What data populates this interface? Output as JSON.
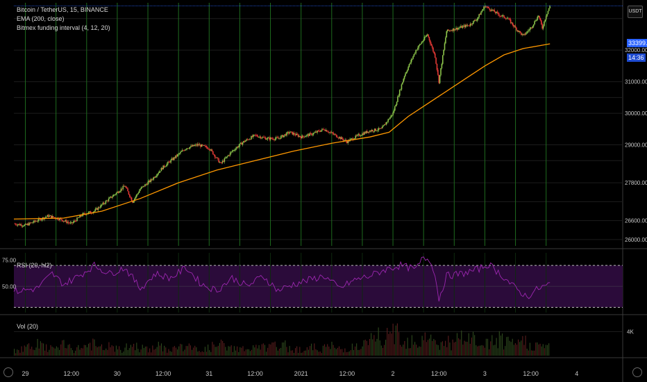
{
  "legend": {
    "title": "Bitcoin / TetherUS, 15, BINANCE",
    "ema": "EMA (200, close)",
    "indicator": "Bitmex funding interval (4, 12, 20)",
    "rsi": "RSI (20, hl2)",
    "vol": "Vol (20)"
  },
  "corner_button": "USDT",
  "price_tag": "33399.01",
  "countdown_tag": "14:36",
  "colors": {
    "background": "#000000",
    "up_candle": "#8bc34a",
    "down_candle": "#e53935",
    "ema": "#ff9800",
    "funding_lines": "#1e6b1e",
    "rsi_line": "#9c27b0",
    "rsi_band": "#2b0b3a",
    "price_line": "#2962ff"
  },
  "chart_data": [
    {
      "type": "line",
      "name": "price",
      "ema_label": "EMA (200, close)",
      "scale_labels": [
        "32000.00",
        "31000.00",
        "30000.00",
        "29000.00",
        "27800.00",
        "26600.00",
        "26000.00"
      ],
      "scale_values": [
        32000,
        31000,
        30000,
        29000,
        27800,
        26600,
        26000
      ],
      "ylim": [
        25800,
        33500
      ],
      "x_ticks": [
        "29",
        "12:00",
        "30",
        "12:00",
        "31",
        "12:00",
        "2021",
        "12:00",
        "2",
        "12:00",
        "3",
        "12:00",
        "4"
      ],
      "x_tick_times": [
        0,
        12,
        24,
        36,
        48,
        60,
        72,
        84,
        96,
        108,
        120,
        132,
        144
      ],
      "x_range": [
        -3,
        156
      ],
      "last_time": 137,
      "close_points": [
        [
          -3,
          26500
        ],
        [
          0,
          26450
        ],
        [
          3,
          26600
        ],
        [
          6,
          26750
        ],
        [
          9,
          26650
        ],
        [
          12,
          26500
        ],
        [
          15,
          26800
        ],
        [
          18,
          26900
        ],
        [
          21,
          27200
        ],
        [
          24,
          27500
        ],
        [
          26,
          27700
        ],
        [
          28,
          27200
        ],
        [
          30,
          27600
        ],
        [
          33,
          27900
        ],
        [
          36,
          28300
        ],
        [
          39,
          28600
        ],
        [
          42,
          28900
        ],
        [
          45,
          29000
        ],
        [
          48,
          28900
        ],
        [
          51,
          28400
        ],
        [
          54,
          28800
        ],
        [
          57,
          29100
        ],
        [
          60,
          29300
        ],
        [
          63,
          29200
        ],
        [
          66,
          29200
        ],
        [
          69,
          29400
        ],
        [
          72,
          29250
        ],
        [
          75,
          29350
        ],
        [
          78,
          29500
        ],
        [
          81,
          29300
        ],
        [
          84,
          29100
        ],
        [
          87,
          29300
        ],
        [
          90,
          29450
        ],
        [
          93,
          29500
        ],
        [
          96,
          30000
        ],
        [
          99,
          31200
        ],
        [
          102,
          32000
        ],
        [
          105,
          32500
        ],
        [
          107,
          31800
        ],
        [
          108,
          31000
        ],
        [
          110,
          32600
        ],
        [
          113,
          32700
        ],
        [
          116,
          32800
        ],
        [
          118,
          33000
        ],
        [
          120,
          33400
        ],
        [
          122,
          33250
        ],
        [
          124,
          33100
        ],
        [
          126,
          33000
        ],
        [
          128,
          32700
        ],
        [
          130,
          32450
        ],
        [
          132,
          32700
        ],
        [
          134,
          33100
        ],
        [
          135,
          32700
        ],
        [
          136,
          33100
        ],
        [
          137,
          33399
        ]
      ],
      "ema_points": [
        [
          -3,
          26650
        ],
        [
          10,
          26680
        ],
        [
          20,
          26900
        ],
        [
          30,
          27300
        ],
        [
          40,
          27800
        ],
        [
          50,
          28200
        ],
        [
          60,
          28500
        ],
        [
          70,
          28800
        ],
        [
          80,
          29050
        ],
        [
          90,
          29250
        ],
        [
          95,
          29400
        ],
        [
          100,
          29900
        ],
        [
          105,
          30300
        ],
        [
          110,
          30700
        ],
        [
          115,
          31100
        ],
        [
          120,
          31500
        ],
        [
          125,
          31850
        ],
        [
          130,
          32050
        ],
        [
          137,
          32200
        ]
      ],
      "funding_interval_hours": 8
    },
    {
      "type": "line",
      "name": "RSI (20, hl2)",
      "scale_labels": [
        "75.00",
        "50.00"
      ],
      "scale_values": [
        75,
        50
      ],
      "band": [
        70,
        30
      ],
      "ylim": [
        25,
        82
      ],
      "points": [
        [
          -3,
          45
        ],
        [
          3,
          48
        ],
        [
          7,
          62
        ],
        [
          10,
          52
        ],
        [
          14,
          60
        ],
        [
          18,
          70
        ],
        [
          22,
          62
        ],
        [
          26,
          68
        ],
        [
          30,
          48
        ],
        [
          34,
          62
        ],
        [
          38,
          58
        ],
        [
          42,
          68
        ],
        [
          46,
          52
        ],
        [
          50,
          46
        ],
        [
          54,
          58
        ],
        [
          58,
          50
        ],
        [
          62,
          60
        ],
        [
          66,
          46
        ],
        [
          70,
          52
        ],
        [
          74,
          56
        ],
        [
          78,
          60
        ],
        [
          82,
          48
        ],
        [
          86,
          56
        ],
        [
          90,
          60
        ],
        [
          94,
          66
        ],
        [
          98,
          70
        ],
        [
          102,
          66
        ],
        [
          104,
          78
        ],
        [
          106,
          74
        ],
        [
          107,
          60
        ],
        [
          108,
          38
        ],
        [
          110,
          60
        ],
        [
          114,
          62
        ],
        [
          118,
          66
        ],
        [
          121,
          71
        ],
        [
          124,
          62
        ],
        [
          128,
          48
        ],
        [
          131,
          40
        ],
        [
          134,
          48
        ],
        [
          137,
          52
        ]
      ]
    },
    {
      "type": "bar",
      "name": "Vol (20)",
      "scale_labels": [
        "4K"
      ],
      "scale_values": [
        4000
      ],
      "ylim": [
        0,
        6500
      ],
      "volumes": [
        900,
        1200,
        1400,
        1000,
        1800,
        1300,
        1100,
        1500,
        1700,
        1200,
        1000,
        1400,
        1600,
        1900,
        1300,
        1200,
        1500,
        1100,
        1000,
        1300,
        1700,
        1400,
        1200,
        1100,
        1500,
        1300,
        1000,
        1200,
        1400,
        1600,
        1300,
        1100,
        1000,
        1200,
        1500,
        1800,
        1400,
        1200,
        1300,
        1100,
        1000,
        1200,
        1400,
        1300,
        1500,
        1700,
        1600,
        1200,
        1100,
        1000,
        1200,
        1300,
        1100,
        1400,
        1500,
        1200,
        1000,
        1300,
        1400,
        1200,
        1800,
        2600,
        3300,
        2200,
        2900,
        4200,
        3100,
        2400,
        2800,
        2000,
        3600,
        2500,
        2100,
        1900,
        2300,
        1800,
        2700,
        2000,
        3100,
        2200,
        1700,
        1900,
        2400,
        2600,
        2000,
        1800,
        2100,
        2300,
        1900,
        1600,
        1500,
        1700
      ]
    }
  ]
}
